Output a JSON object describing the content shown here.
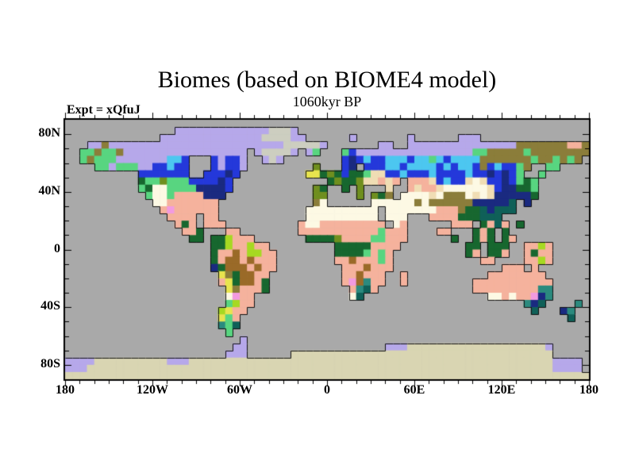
{
  "chart_data": {
    "type": "heatmap",
    "title": "Biomes (based on BIOME4 model)",
    "subtitle": "1060kyr BP",
    "annotation": "Expt = xQfuJ",
    "projection": "equirectangular world map",
    "xlabel": "",
    "ylabel": "",
    "xlim": [
      -180,
      180
    ],
    "ylim": [
      -90,
      90
    ],
    "x_ticks": [
      {
        "label": "180",
        "lon": -180
      },
      {
        "label": "120W",
        "lon": -120
      },
      {
        "label": "60W",
        "lon": -60
      },
      {
        "label": "0",
        "lon": 0
      },
      {
        "label": "60E",
        "lon": 60
      },
      {
        "label": "120E",
        "lon": 120
      },
      {
        "label": "180",
        "lon": 180
      }
    ],
    "y_ticks": [
      {
        "label": "80N",
        "lat": 80
      },
      {
        "label": "40N",
        "lat": 40
      },
      {
        "label": "0",
        "lat": 0
      },
      {
        "label": "40S",
        "lat": -40
      },
      {
        "label": "80S",
        "lat": -80
      }
    ],
    "minor_tick_interval_deg": 10,
    "legend": "none",
    "colors": {
      "ocean": "#a9a9a9",
      "coastline": "#111111",
      "frame": "#000000",
      "background": "#ffffff"
    },
    "grid_cell_deg": 5,
    "grid_cols": 72,
    "grid_rows": 36,
    "palette": {
      "T": {
        "name": "lavender",
        "hex": "#b6a8ea"
      },
      "I": {
        "name": "pale-grey",
        "hex": "#cdcec0"
      },
      "A": {
        "name": "pale-tan",
        "hex": "#d9d5b2"
      },
      "S": {
        "name": "khaki-olive",
        "hex": "#8b7d3a"
      },
      "O": {
        "name": "olive-green",
        "hex": "#6f8f1f"
      },
      "G": {
        "name": "light-green",
        "hex": "#58d580"
      },
      "D": {
        "name": "dark-green",
        "hex": "#17672f"
      },
      "B": {
        "name": "blue",
        "hex": "#2438da"
      },
      "N": {
        "name": "navy",
        "hex": "#1a2a80"
      },
      "C": {
        "name": "cyan",
        "hex": "#4cc7f0"
      },
      "c": {
        "name": "teal",
        "hex": "#2b8a7e"
      },
      "d": {
        "name": "dark-teal",
        "hex": "#0f6058"
      },
      "P": {
        "name": "salmon",
        "hex": "#f5b29d"
      },
      "W": {
        "name": "cream-white",
        "hex": "#fdf9e4"
      },
      "w": {
        "name": "wheat",
        "hex": "#f0ddb4"
      },
      "Y": {
        "name": "yellow",
        "hex": "#e8e44e"
      },
      "L": {
        "name": "lime",
        "hex": "#a6d922"
      },
      "K": {
        "name": "brown",
        "hex": "#9a6a28"
      },
      "M": {
        "name": "orchid-pink",
        "hex": "#f29ae0"
      }
    },
    "grid": [
      "........................................................................",
      "...............TTTTTTTTTTTTTIIIT........................................",
      ".............TTTTTTTTTTTTTTIIIITT......T.......T......TTT...............",
      "...TTSTTTTTTTTTTTTTTTTTTTTTTTTIIIIIT.......TT..TTTTTTTTTTTTTTTSSSSSSSPPSST.",
      "..GGSGGSTTTTTTTTTTTTTTTTT.TIIIIT.TG...GBTTTTTTTTTTTTTTTTGGSSSSSGSSSSSSSS",
      "..GSGGGTTTTTTTCCB...BTBBT..TIT........BNBCBBCCCBCCGCBCCCCSSSSSSSGSSGSGS.",
      "....GGTGGGTTBBCBB...BTBBT.........O...BN.BBBCCBCCCCBCBCCBSBCBBGS..GG....",
      "..........BBBBBBB..BBBNB.........YYDODBDDGwwBBCBBBCBBBBCBBNBNBG..G.....",
      "..........DGGOGGGBBBBNB.............DODDOwwPwP.PPPwBCBBwWwBBNBGDG.......",
      "..........GDWWGGGGNNNNB...........OD..D.O...w..PwPPwWWWWWWwBNNDDG.......",
      "...........GWWGPPPPNNN............OO....O.ODS.WWWWwWSSSWwWwNNNNND.......",
      "............WWPPPPPPP.............SW......WWWWWWSWSSSSSSNNNNNd.N........",
      ".............PMPPPPPP............WWWWWWWWWW.WWWWWWWPPPSDDdNddd..........",
      "..............PPPP.PP............WWWWWWWWWW.WWW...PPPPDDDddd............",
      "...............PDP.PPP..........PWWPPPPPPPPP.WP......PPP.DPdP.D...........",
      "................PPD...PP........PPPPPPPPPPPGPPP....PP...DPD.D...........",
      ".................DD.DDLPPP.......DDDDOPPPPGGPPP......D..DPD.DP..........",
      "....................DDLPPLPP.........DDDDDPPPP.........DD.DDD..PPLP.....",
      "....................DPPKPLLPP........DDDDGPGP..........DP.DDP..PDPP.....",
      "....................DPKKPKPPP........PPKPPPGP............PP....PPLP.....",
      "....................NDKKKPKPP.........PPPKPPP...............PPP.P.......",
      ".....................YSDKKPP..........PPKPPP..P...........PPPPPPPP......",
      ".....................PYDKKPD..........PMKcPP..P.........PPPPPPPPPPP.....",
      "......................YSPPPD...........PcdP.............PPPPPPPPPcc.....",
      "......................WMPP.............Wd.................WWPWPPMNc.....",
      "......................GLPP.....................................cNd....c.",
      ".....................LYPP.......................................d...Nc.",
      ".....................YGP.............................................d..",
      ".....................cGd................................................",
      "......................G.................................................",
      "........................T...............................................",
      ".......................TT...................TTTAAAAAAAAAAAAAAAAAAAT.....",
      "......................TTT......AAAAAAAAAAAAAAAAAAAAAAAAAAAAAAAAAAAA....",
      "TTTTAAAAAAAAAATTTAAAAAAAAAAAAAAAAAAAAAAAAAAAAAAAAAAAAAAAAAAAAAAAAAATTTT",
      "TTTAAAAAAAAAAAAAAAAAAAAAAAAAAAAAAAAAAAAAAAAAAAAAAAAAAAAAAAAAAAAAAAATTTT",
      "AAAAAAAAAAAAAAAAAAAAAAAAAAAAAAAAAAAAAAAAAAAAAAAAAAAAAAAAAAAAAAAAAAAAAAAA"
    ]
  }
}
